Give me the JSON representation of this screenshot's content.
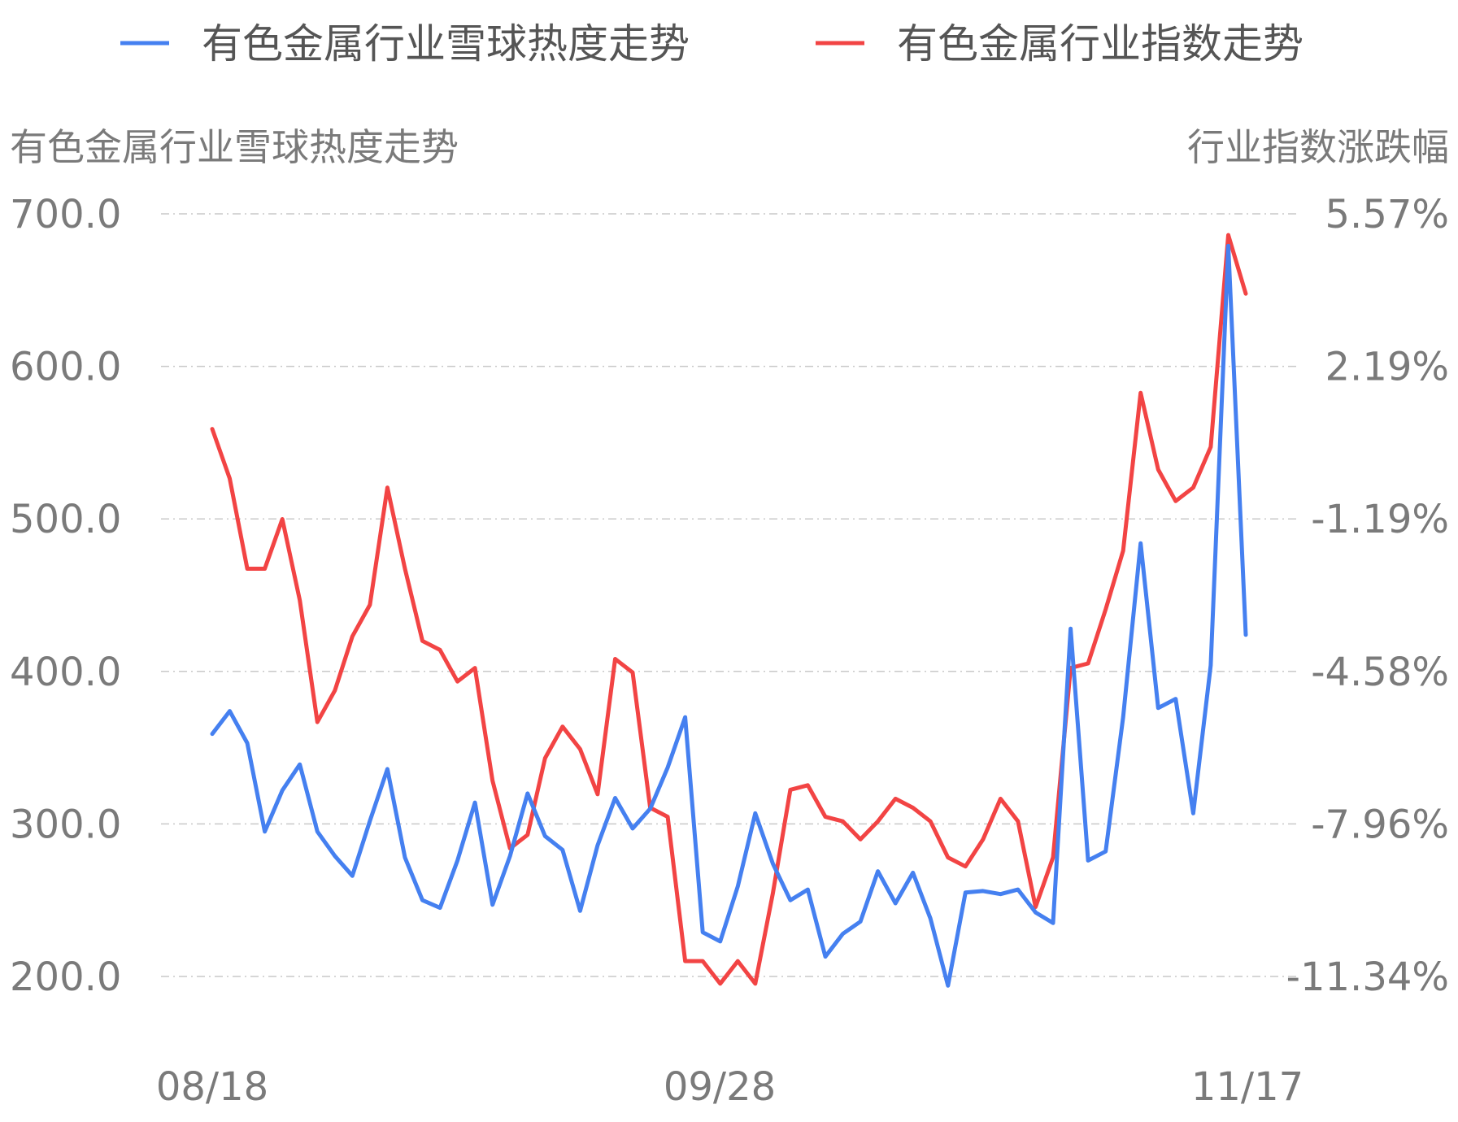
{
  "chart_data": {
    "type": "line",
    "legend": {
      "position": "top"
    },
    "x_tick_labels": [
      "08/18",
      "09/28",
      "11/17"
    ],
    "left_axis": {
      "title": "有色金属行业雪球热度走势",
      "ticks": [
        "700.0",
        "600.0",
        "500.0",
        "400.0",
        "300.0",
        "200.0"
      ],
      "range": [
        200,
        700
      ]
    },
    "right_axis": {
      "title": "行业指数涨跌幅",
      "ticks": [
        "5.57%",
        "2.19%",
        "-1.19%",
        "-4.58%",
        "-7.96%",
        "-11.34%"
      ],
      "range": [
        -11.34,
        5.57
      ]
    },
    "grid": true,
    "series": [
      {
        "name": "有色金属行业雪球热度走势",
        "axis": "left",
        "color": "#4580f0",
        "values": [
          359,
          374,
          353,
          295,
          322,
          339,
          295,
          279,
          266,
          302,
          336,
          278,
          250,
          245,
          276,
          314,
          247,
          279,
          320,
          292,
          283,
          243,
          286,
          317,
          297,
          310,
          337,
          370,
          229,
          223,
          259,
          307,
          274,
          250,
          257,
          213,
          228,
          236,
          269,
          248,
          268,
          238,
          194,
          255,
          256,
          254,
          257,
          242,
          235,
          428,
          276,
          282,
          370,
          484,
          376,
          382,
          307,
          404,
          679,
          424
        ]
      },
      {
        "name": "有色金属行业指数走势",
        "axis": "right",
        "color": "#f24444",
        "values": [
          0.8,
          -0.3,
          -2.3,
          -2.3,
          -1.2,
          -3.0,
          -5.7,
          -5.0,
          -3.8,
          -3.1,
          -0.5,
          -2.3,
          -3.9,
          -4.1,
          -4.8,
          -4.5,
          -7.0,
          -8.5,
          -8.2,
          -6.5,
          -5.8,
          -6.3,
          -7.3,
          -4.3,
          -4.6,
          -7.6,
          -7.8,
          -11.0,
          -11.0,
          -11.5,
          -11.0,
          -11.5,
          -9.5,
          -7.2,
          -7.1,
          -7.8,
          -7.9,
          -8.3,
          -7.9,
          -7.4,
          -7.6,
          -7.9,
          -8.7,
          -8.9,
          -8.3,
          -7.4,
          -7.9,
          -9.8,
          -8.7,
          -4.5,
          -4.4,
          -3.2,
          -1.9,
          1.6,
          -0.1,
          -0.8,
          -0.5,
          0.4,
          5.1,
          3.8
        ]
      }
    ]
  }
}
